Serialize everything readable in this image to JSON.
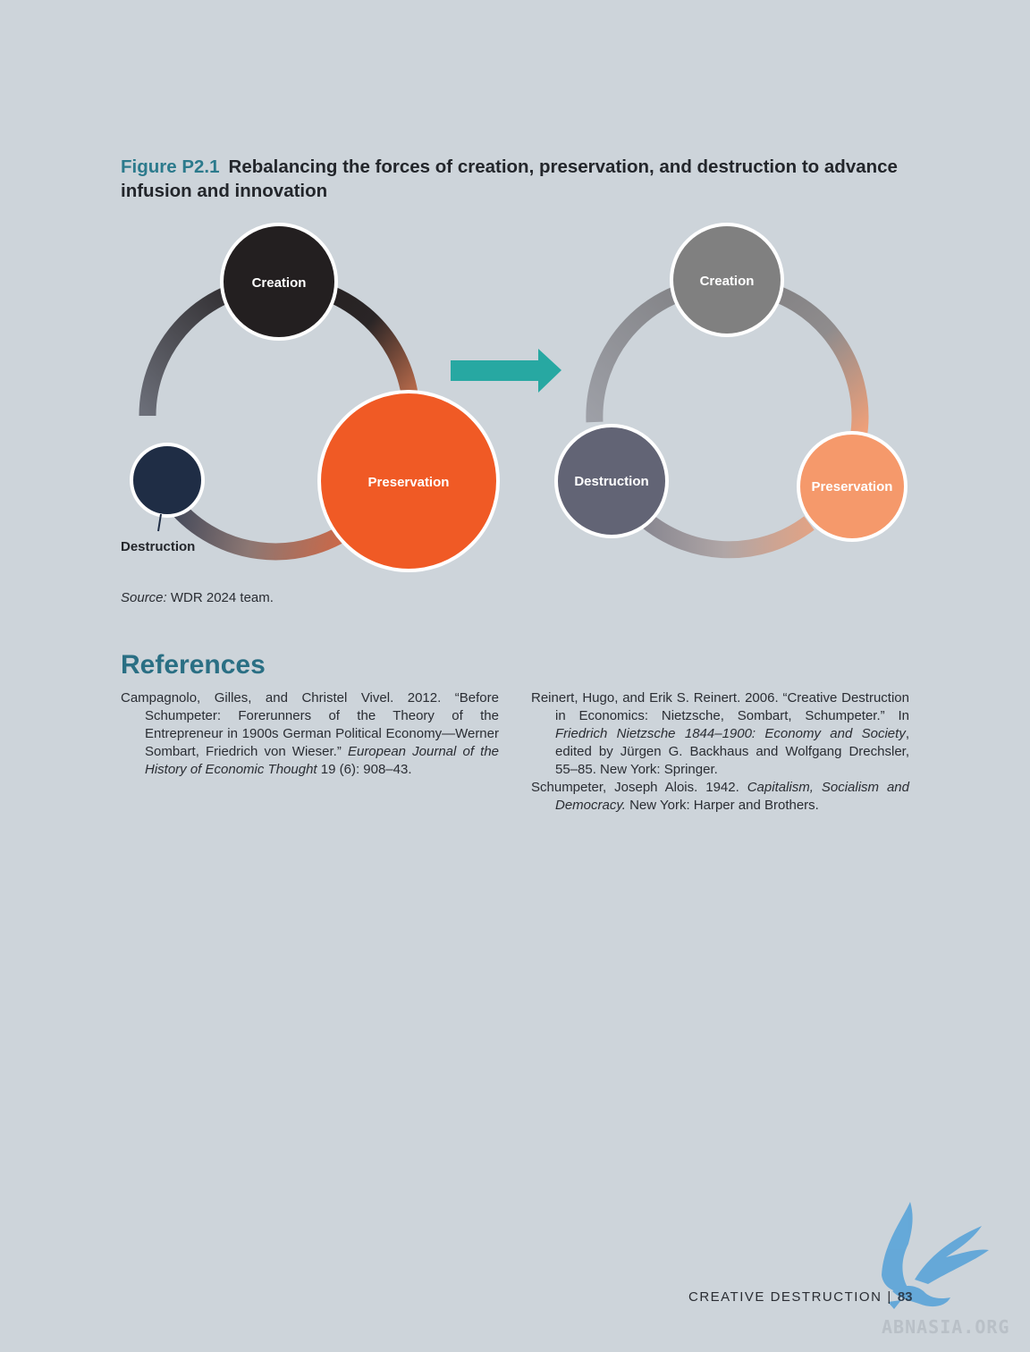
{
  "figure": {
    "number": "Figure P2.1",
    "title": "Rebalancing the forces of creation, preservation, and destruction to advance infusion and innovation",
    "left_diagram": {
      "creation": "Creation",
      "preservation": "Preservation",
      "destruction": "Destruction"
    },
    "right_diagram": {
      "creation": "Creation",
      "preservation": "Preservation",
      "destruction": "Destruction"
    },
    "colors": {
      "creation_before": "#231f20",
      "preservation_before": "#f05a25",
      "destruction_before": "#1f2d45",
      "creation_after": "#808080",
      "preservation_after": "#f5996b",
      "destruction_after": "#626475",
      "arrow": "#27a8a2"
    },
    "source_label": "Source:",
    "source_text": " WDR 2024 team."
  },
  "references": {
    "heading": "References",
    "entries": [
      {
        "before": "Campagnolo, Gilles, and Christel Vivel. 2012. “Before Schumpeter: Forerunners of the Theory of the Entrepreneur in 1900s German Political Economy—Werner Sombart, Friedrich von Wieser.” ",
        "italic": "European Journal of the History of Economic Thought",
        "after": " 19 (6): 908–43."
      },
      {
        "before": "Reinert, Hugo, and Erik S. Reinert. 2006. “Creative Destruction in Economics: Nietzsche, Sombart, Schumpeter.” In ",
        "italic": "Friedrich Nietzsche 1844–1900: Economy and Society",
        "after": ", edited by Jürgen G. Backhaus and Wolfgang Drechsler, 55–85. New York: Springer."
      },
      {
        "before": "Schumpeter, Joseph Alois. 1942. ",
        "italic": "Capitalism, Socialism and Democracy.",
        "after": " New York: Harper and Brothers."
      }
    ]
  },
  "footer": {
    "section": "CREATIVE DESTRUCTION",
    "separator": "|",
    "page": "83"
  },
  "watermark": {
    "text": "ABNASIA.ORG",
    "icon": "bird-icon"
  }
}
